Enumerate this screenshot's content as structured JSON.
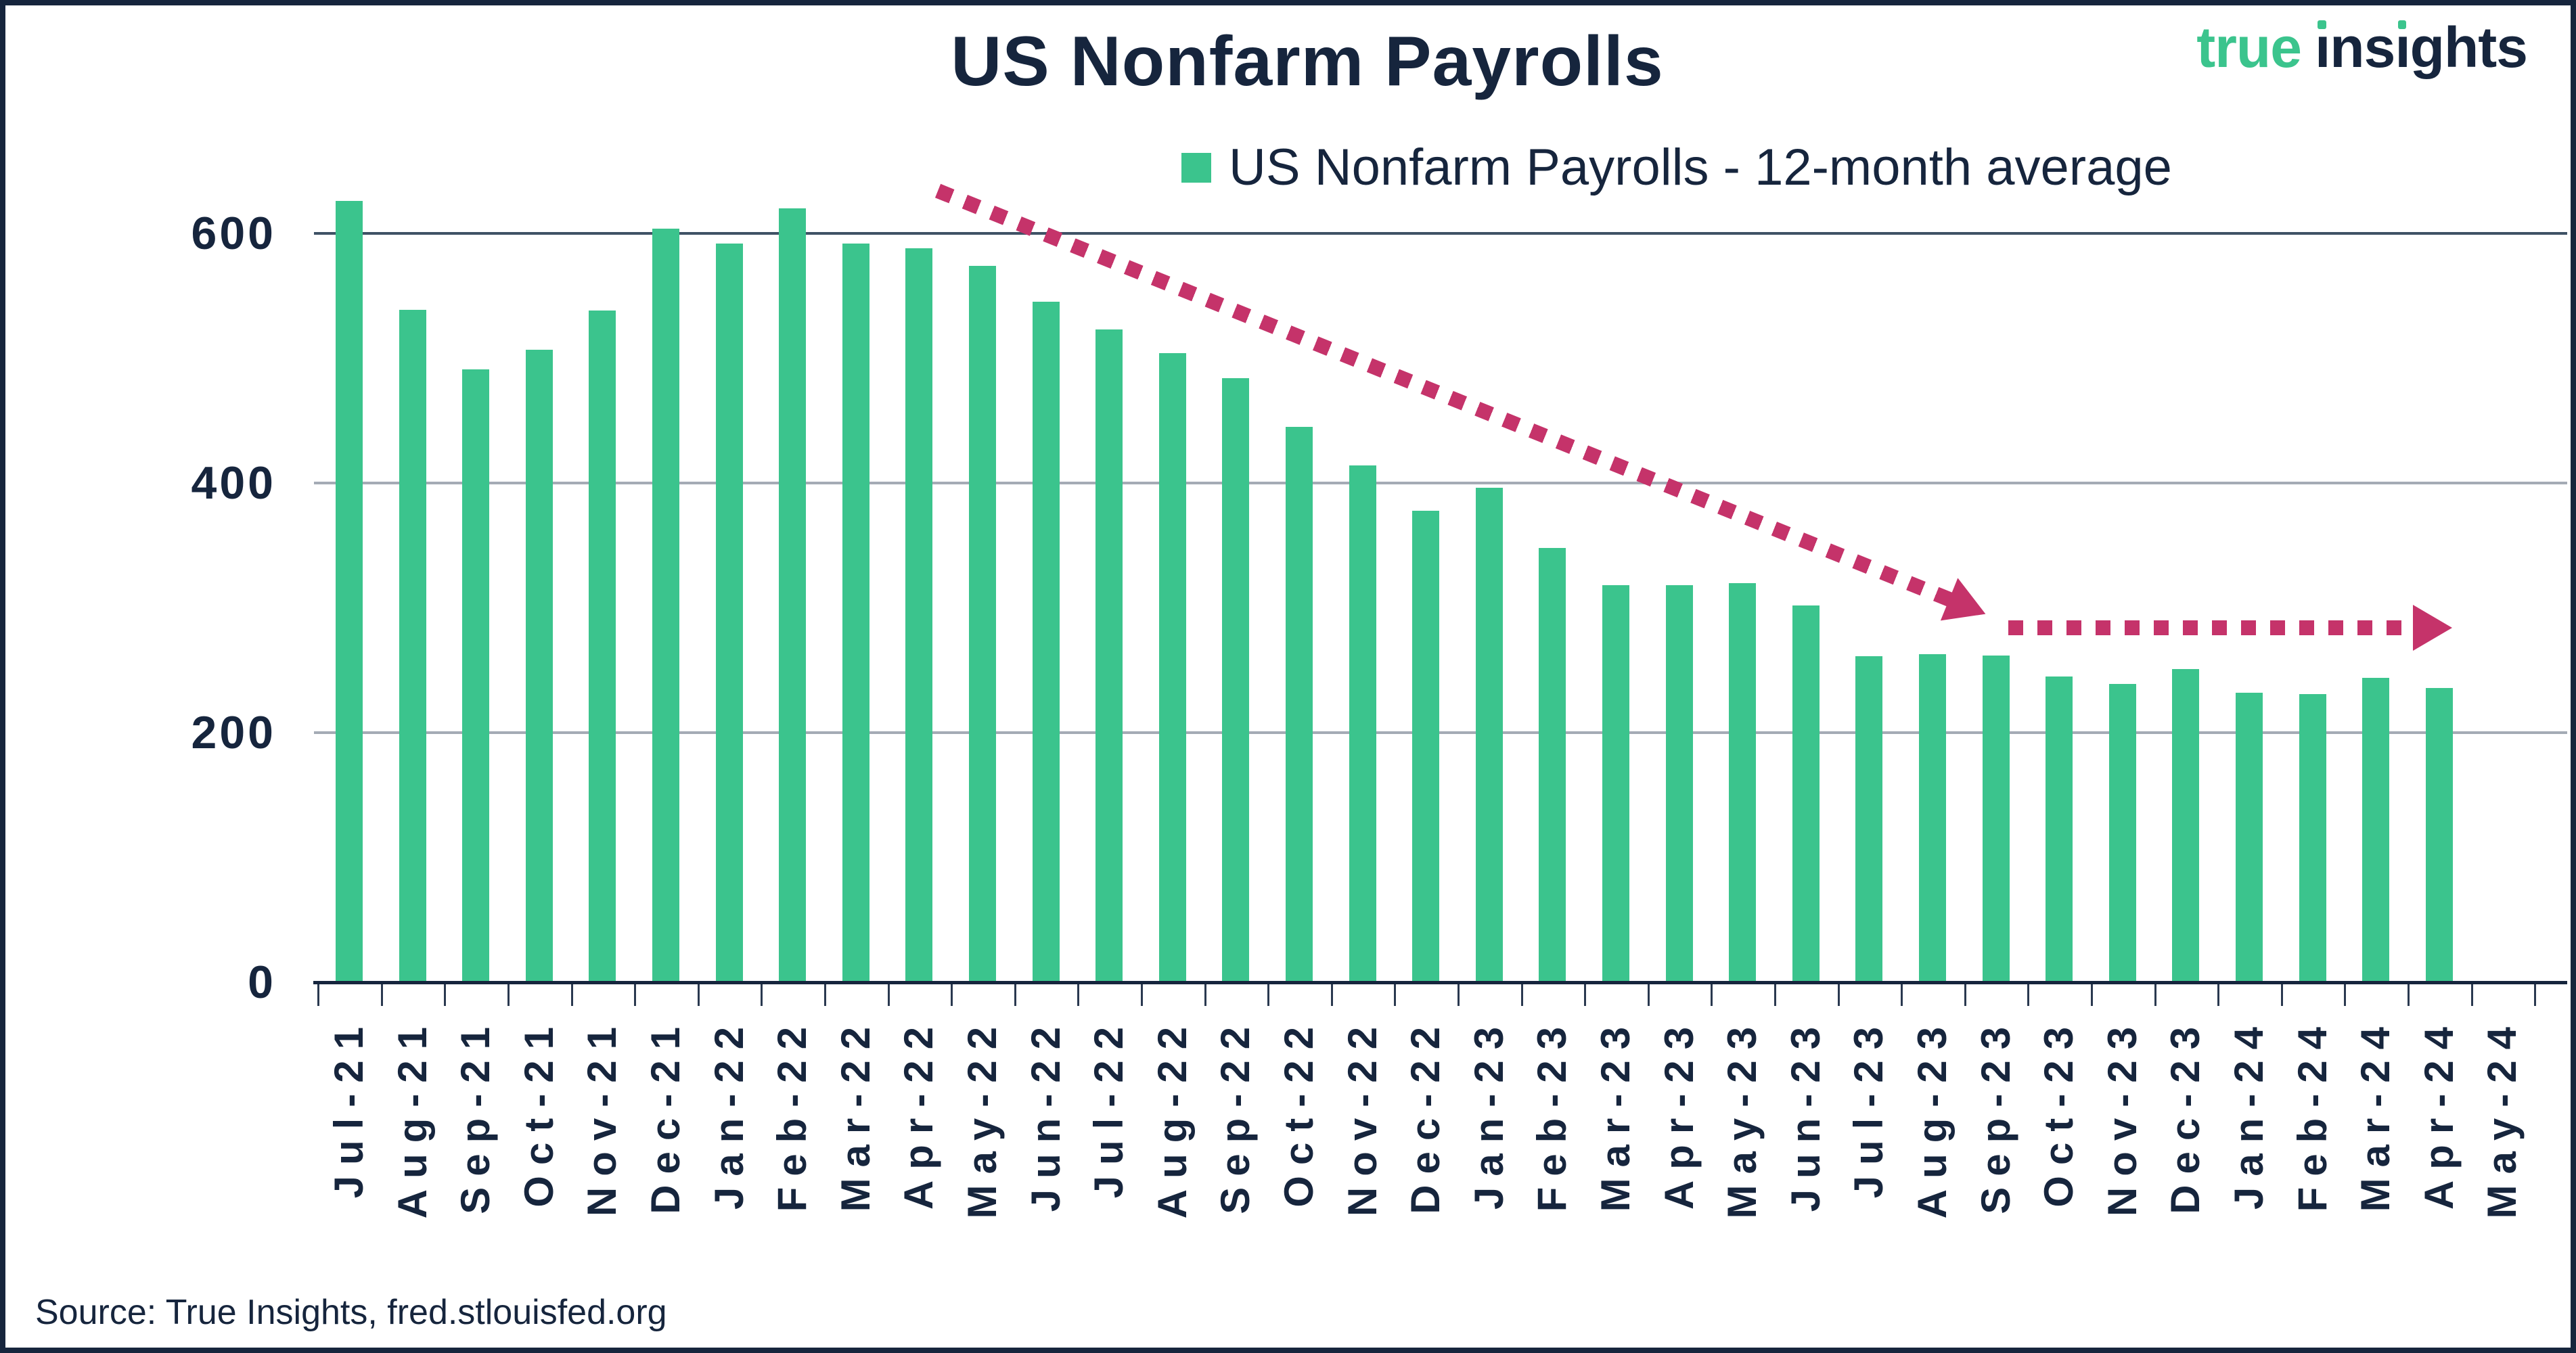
{
  "title": "US Nonfarm Payrolls",
  "logo": {
    "word1": "true",
    "word2": "insights"
  },
  "legend": {
    "label": "US Nonfarm Payrolls - 12-month average"
  },
  "source": "Source: True Insights, fred.stlouisfed.org",
  "colors": {
    "bar_green": "#3bc48d",
    "arrow_crimson": "#c5336a",
    "navy": "#16253d",
    "gridline_gray": "#a4abb5",
    "gridline_dark": "#3f5265"
  },
  "chart_data": {
    "type": "bar",
    "title": "US Nonfarm Payrolls",
    "legend_entries": [
      "US Nonfarm Payrolls - 12-month average"
    ],
    "legend_position": "top",
    "grid": "horizontal",
    "ylim": [
      0,
      650
    ],
    "yticks": [
      0,
      200,
      400,
      600
    ],
    "categories": [
      "Jul-21",
      "Aug-21",
      "Sep-21",
      "Oct-21",
      "Nov-21",
      "Dec-21",
      "Jan-22",
      "Feb-22",
      "Mar-22",
      "Apr-22",
      "May-22",
      "Jun-22",
      "Jul-22",
      "Aug-22",
      "Sep-22",
      "Oct-22",
      "Nov-22",
      "Dec-22",
      "Jan-23",
      "Feb-23",
      "Mar-23",
      "Apr-23",
      "May-23",
      "Jun-23",
      "Jul-23",
      "Aug-23",
      "Sep-23",
      "Oct-23",
      "Nov-23",
      "Dec-23",
      "Jan-24",
      "Feb-24",
      "Mar-24",
      "Apr-24",
      "May-24"
    ],
    "values": [
      626,
      539,
      491,
      507,
      538,
      604,
      592,
      620,
      592,
      588,
      574,
      545,
      523,
      504,
      484,
      445,
      414,
      378,
      396,
      348,
      318,
      318,
      320,
      302,
      261,
      263,
      262,
      245,
      239,
      251,
      232,
      231,
      244,
      236,
      null
    ],
    "annotations": [
      {
        "type": "arrow",
        "style": "dotted",
        "direction": "down-right",
        "span": "Jul-21 to Aug-23",
        "color": "#c5336a"
      },
      {
        "type": "arrow",
        "style": "dotted",
        "direction": "right",
        "span": "Sep-23 to Apr-24",
        "color": "#c5336a"
      }
    ]
  }
}
